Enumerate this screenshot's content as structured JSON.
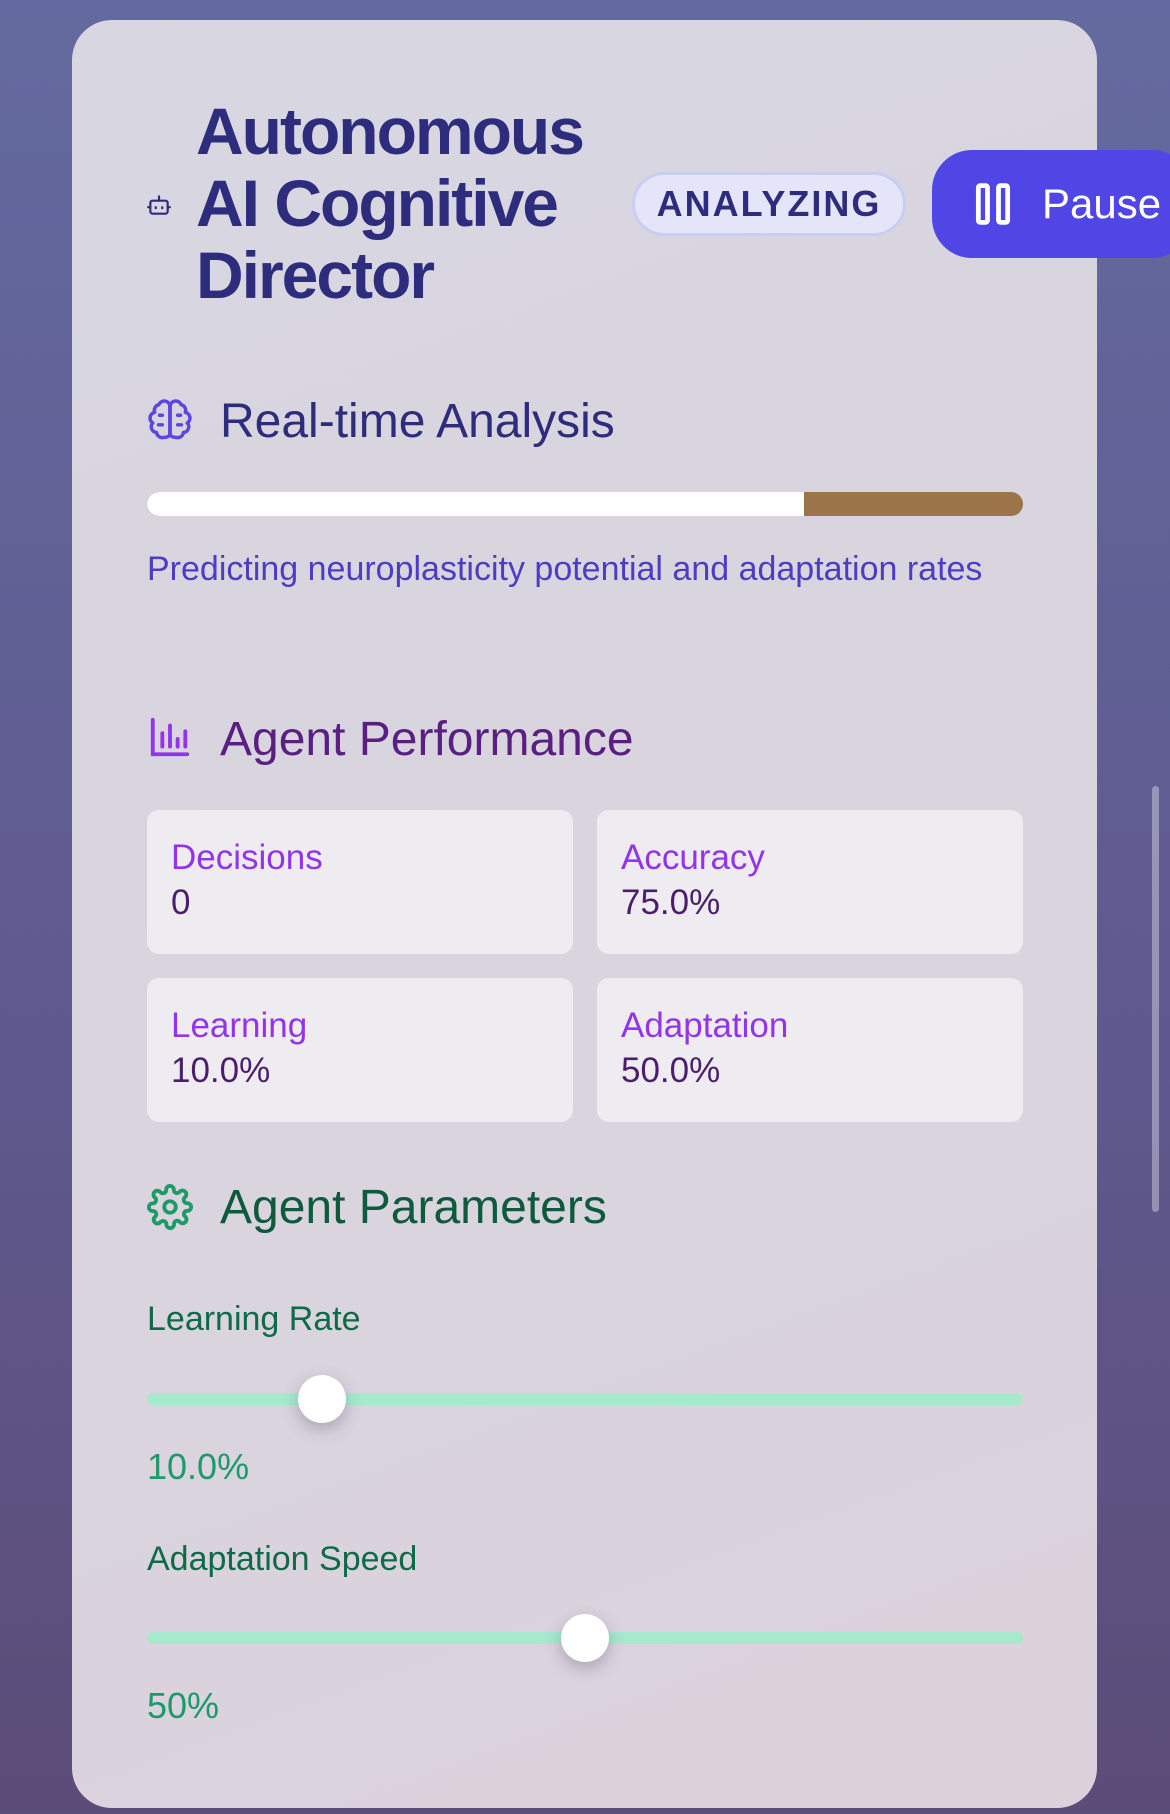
{
  "header": {
    "title": "Autonomous AI Cognitive Director",
    "status": "ANALYZING",
    "pause_label": "Pause",
    "robot_icon": "robot-icon",
    "pause_icon": "pause-icon"
  },
  "analysis": {
    "title": "Real-time Analysis",
    "icon": "brain-icon",
    "progress": 0.75,
    "description": "Predicting neuroplasticity potential and adaptation rates"
  },
  "performance": {
    "title": "Agent Performance",
    "icon": "bar-chart-icon",
    "metrics": [
      {
        "label": "Decisions",
        "value": "0"
      },
      {
        "label": "Accuracy",
        "value": "75.0%"
      },
      {
        "label": "Learning",
        "value": "10.0%"
      },
      {
        "label": "Adaptation",
        "value": "50.0%"
      }
    ]
  },
  "parameters": {
    "title": "Agent Parameters",
    "icon": "gear-icon",
    "items": [
      {
        "label": "Learning Rate",
        "value_text": "10.0%",
        "level": 0.2
      },
      {
        "label": "Adaptation Speed",
        "value_text": "50%",
        "level": 0.5
      }
    ]
  },
  "colors": {
    "accent": "#4f46e5",
    "progress_remaining": "#9c7449",
    "slider_track": "#a7e9cd"
  }
}
